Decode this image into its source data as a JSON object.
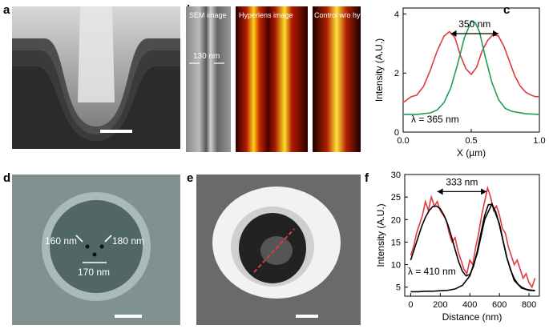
{
  "panels": {
    "a": {
      "label": "a"
    },
    "b": {
      "label": "b",
      "sem_title": "SEM image",
      "hyperlens_title": "Hyperlens image",
      "control_title": "Control w/o hyperlens",
      "scale_text": "130 nm"
    },
    "c": {
      "label": "c"
    },
    "d": {
      "label": "d",
      "dist1": "160 nm",
      "dist2": "180 nm",
      "dist3": "170 nm"
    },
    "e": {
      "label": "e"
    },
    "f": {
      "label": "f"
    }
  },
  "colors": {
    "red": "#e03a3e",
    "green": "#1f9e57",
    "black": "#000000"
  },
  "chart_data": [
    {
      "panel": "c",
      "type": "line",
      "xlabel": "X (µm)",
      "ylabel": "Intensity (A.U.)",
      "xlim": [
        0,
        1.0
      ],
      "ylim": [
        0,
        4.2
      ],
      "xticks": [
        "0.0",
        "0.5",
        "1.0"
      ],
      "yticks": [
        "0",
        "2",
        "4"
      ],
      "annotation": "350 nm",
      "wavelength_label": "λ = 365 nm",
      "series": [
        {
          "color": "#e03a3e",
          "x": [
            0.0,
            0.03,
            0.06,
            0.1,
            0.15,
            0.2,
            0.25,
            0.3,
            0.34,
            0.38,
            0.42,
            0.46,
            0.5,
            0.54,
            0.58,
            0.62,
            0.66,
            0.7,
            0.74,
            0.78,
            0.82,
            0.86,
            0.9,
            0.94,
            0.97,
            1.0
          ],
          "y": [
            1.0,
            1.1,
            1.2,
            1.25,
            1.55,
            2.1,
            2.75,
            3.25,
            3.4,
            3.2,
            2.6,
            2.15,
            1.95,
            2.2,
            2.75,
            3.1,
            3.3,
            3.25,
            2.9,
            2.4,
            1.9,
            1.55,
            1.35,
            1.25,
            1.2,
            1.2
          ]
        },
        {
          "color": "#1f9e57",
          "x": [
            0.0,
            0.1,
            0.2,
            0.25,
            0.3,
            0.35,
            0.4,
            0.45,
            0.5,
            0.53,
            0.56,
            0.6,
            0.65,
            0.7,
            0.75,
            0.8,
            0.9,
            1.0
          ],
          "y": [
            0.6,
            0.6,
            0.65,
            0.75,
            1.0,
            1.5,
            2.3,
            3.2,
            3.75,
            3.7,
            3.4,
            2.6,
            1.7,
            1.1,
            0.8,
            0.7,
            0.62,
            0.6
          ]
        }
      ]
    },
    {
      "panel": "f",
      "type": "line",
      "xlabel": "Distance (nm)",
      "ylabel": "Intensity (A.U.)",
      "xlim": [
        -40,
        870
      ],
      "ylim": [
        3,
        30
      ],
      "xticks": [
        "0",
        "200",
        "400",
        "600",
        "800"
      ],
      "yticks": [
        "5",
        "10",
        "15",
        "20",
        "25",
        "30"
      ],
      "annotation": "333 nm",
      "wavelength_label": "λ = 410 nm",
      "series": [
        {
          "color": "#e03a3e",
          "x": [
            0,
            20,
            40,
            60,
            80,
            100,
            120,
            140,
            160,
            180,
            200,
            220,
            240,
            260,
            280,
            300,
            320,
            340,
            360,
            380,
            400,
            420,
            440,
            460,
            480,
            500,
            520,
            540,
            560,
            580,
            600,
            620,
            640,
            660,
            680,
            700,
            720,
            740,
            760,
            780,
            800,
            820,
            840
          ],
          "y": [
            12,
            14,
            17,
            19,
            21,
            24,
            22,
            25,
            23,
            24,
            22,
            21,
            20,
            17,
            15,
            16,
            13,
            11,
            9,
            8,
            11,
            10,
            14,
            17,
            21,
            24,
            27,
            25,
            22,
            23,
            21,
            18,
            17,
            14,
            12,
            10,
            11,
            9,
            7,
            8,
            6,
            5,
            7
          ]
        },
        {
          "color": "#000000",
          "x": [
            0,
            25,
            50,
            75,
            100,
            125,
            150,
            175,
            200,
            225,
            250,
            275,
            300,
            325,
            350,
            375,
            400,
            425,
            450,
            475,
            500,
            525,
            550,
            575,
            600,
            625,
            650,
            675,
            700,
            725,
            750,
            775,
            800,
            825,
            840
          ],
          "y": [
            11,
            13.5,
            16,
            18.5,
            20.5,
            22,
            22.9,
            23,
            22.4,
            21,
            19,
            16.3,
            13.4,
            10.6,
            8.5,
            7.5,
            7.8,
            9.6,
            13,
            17,
            20.9,
            23.3,
            23.4,
            21.7,
            18.8,
            15.1,
            11.6,
            8.8,
            6.9,
            5.7,
            5.0,
            4.6,
            4.4,
            4.3,
            4.3
          ]
        },
        {
          "color": "#000000",
          "x": [
            0,
            50,
            100,
            150,
            200,
            250,
            300,
            350,
            400,
            450,
            500,
            550,
            600,
            650,
            700,
            750,
            800,
            840
          ],
          "y": [
            4,
            4,
            4.1,
            4.1,
            4.2,
            4.3,
            4.6,
            5.4,
            7.5,
            12.5,
            20,
            23.5,
            19,
            11.5,
            6.5,
            4.8,
            4.3,
            4.2
          ]
        }
      ]
    }
  ]
}
